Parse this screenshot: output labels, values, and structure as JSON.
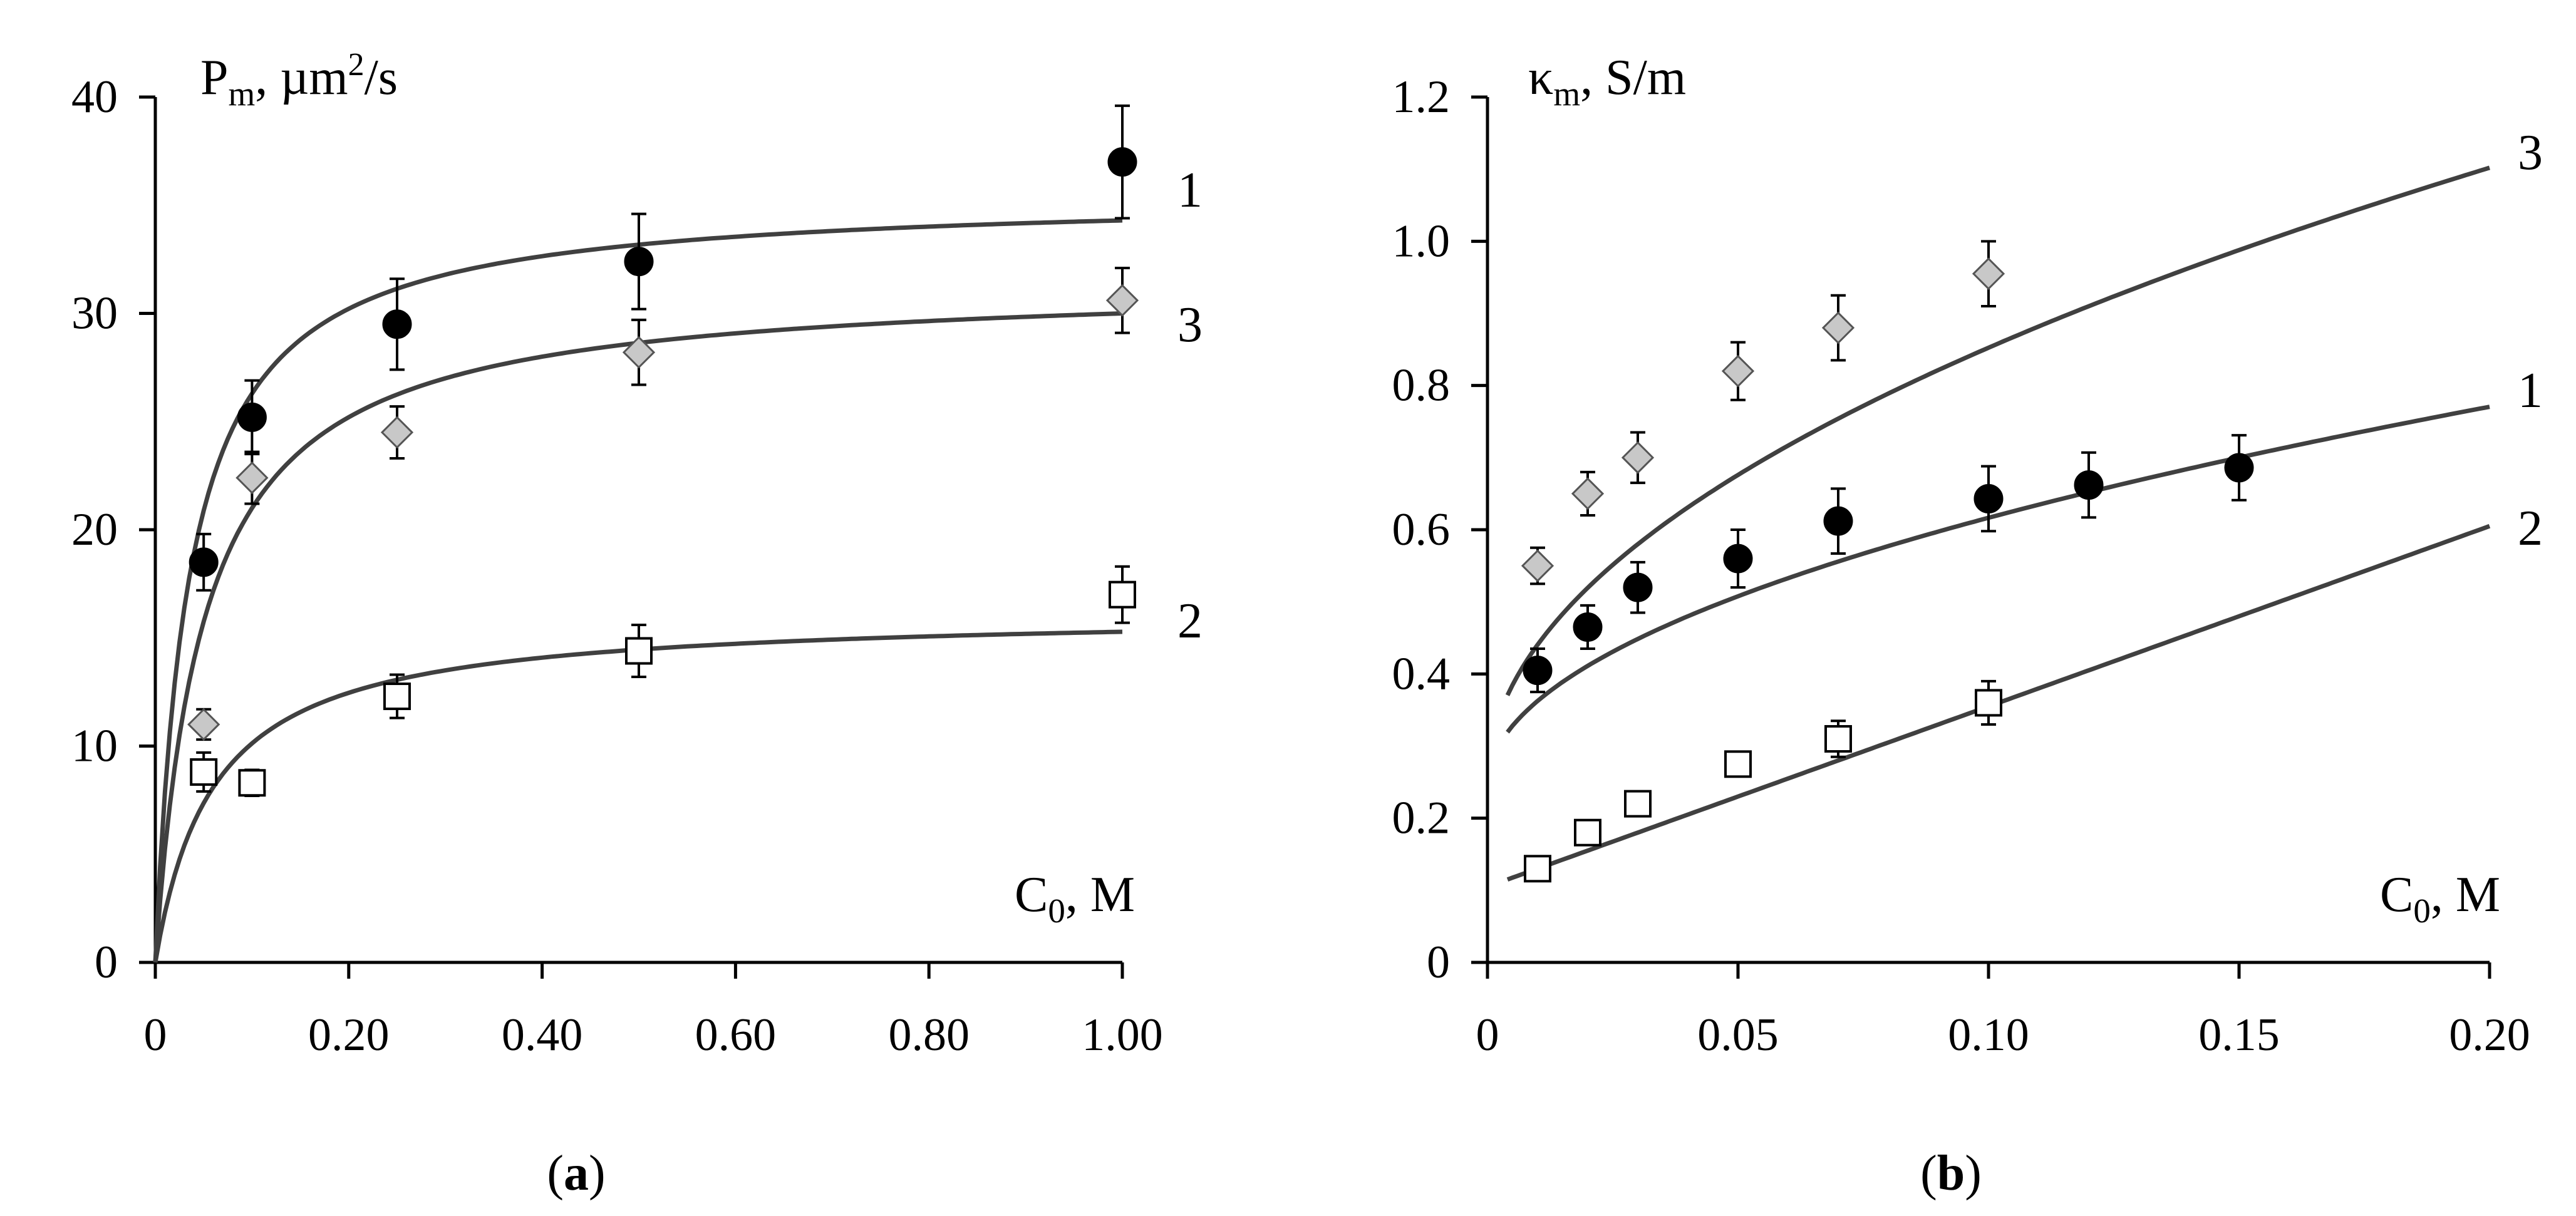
{
  "figure": {
    "panels": [
      {
        "id": "a",
        "panel_label_open": "(",
        "panel_label": "a",
        "panel_label_close": ")"
      },
      {
        "id": "b",
        "panel_label_open": "(",
        "panel_label": "b",
        "panel_label_close": ")"
      }
    ]
  },
  "chart_data": [
    {
      "type": "scatter",
      "panel": "a",
      "title": "",
      "ylabel_main": "P",
      "ylabel_sub": "m",
      "ylabel_rest": ", µm",
      "ylabel_sup": "2",
      "ylabel_tail": "/s",
      "xlabel_main": "C",
      "xlabel_sub": "0",
      "xlabel_tail": ", M",
      "xlim": [
        0,
        1.0
      ],
      "ylim": [
        0,
        40
      ],
      "xticks": [
        0,
        0.2,
        0.4,
        0.6,
        0.8,
        1.0
      ],
      "xtick_labels": [
        "0",
        "0.20",
        "0.40",
        "0.60",
        "0.80",
        "1.00"
      ],
      "yticks": [
        0,
        10,
        20,
        30,
        40
      ],
      "ytick_labels": [
        "0",
        "10",
        "20",
        "30",
        "40"
      ],
      "series": [
        {
          "name": "1",
          "marker": "circle",
          "marker_fill": "#000000",
          "x": [
            0.05,
            0.1,
            0.25,
            0.5,
            1.0
          ],
          "y": [
            18.5,
            25.2,
            29.5,
            32.4,
            37.0
          ],
          "err": [
            1.3,
            1.7,
            2.1,
            2.2,
            2.6
          ],
          "fit": {
            "x0": 0.05,
            "A": 35.5,
            "K": 0.035,
            "offset": 0
          }
        },
        {
          "name": "3",
          "marker": "diamond",
          "marker_fill": "#c8c8c8",
          "x": [
            0.05,
            0.1,
            0.25,
            0.5,
            1.0
          ],
          "y": [
            11.0,
            22.4,
            24.5,
            28.2,
            30.6
          ],
          "err": [
            0.7,
            1.2,
            1.2,
            1.5,
            1.5
          ],
          "fit": {
            "x0": 0.05,
            "A": 31.5,
            "K": 0.05,
            "offset": 0
          }
        },
        {
          "name": "2",
          "marker": "square",
          "marker_fill": "#ffffff",
          "x": [
            0.05,
            0.1,
            0.25,
            0.5,
            1.0
          ],
          "y": [
            8.8,
            8.3,
            12.3,
            14.4,
            17.0
          ],
          "err": [
            0.9,
            0.6,
            1.0,
            1.2,
            1.3
          ],
          "fit": {
            "x0": 0.05,
            "A": 16.2,
            "K": 0.06,
            "offset": 0
          }
        }
      ]
    },
    {
      "type": "scatter",
      "panel": "b",
      "title": "",
      "ylabel_main": "κ",
      "ylabel_sub": "m",
      "ylabel_rest": ", S/m",
      "ylabel_sup": "",
      "ylabel_tail": "",
      "xlabel_main": "C",
      "xlabel_sub": "0",
      "xlabel_tail": ", M",
      "xlim": [
        0,
        0.2
      ],
      "ylim": [
        0,
        1.2
      ],
      "xticks": [
        0,
        0.05,
        0.1,
        0.15,
        0.2
      ],
      "xtick_labels": [
        "0",
        "0.05",
        "0.10",
        "0.15",
        "0.20"
      ],
      "yticks": [
        0,
        0.2,
        0.4,
        0.6,
        0.8,
        1.0,
        1.2
      ],
      "ytick_labels": [
        "0",
        "0.2",
        "0.4",
        "0.6",
        "0.8",
        "1.0",
        "1.2"
      ],
      "series": [
        {
          "name": "3",
          "marker": "diamond",
          "marker_fill": "#c8c8c8",
          "x": [
            0.01,
            0.02,
            0.03,
            0.05,
            0.07,
            0.1
          ],
          "y": [
            0.55,
            0.65,
            0.7,
            0.82,
            0.88,
            0.955
          ],
          "err": [
            0.025,
            0.03,
            0.035,
            0.04,
            0.045,
            0.045
          ],
          "fit": {
            "x0": 0.004,
            "form": "sqrt",
            "a": 0.25,
            "b": 1.905
          }
        },
        {
          "name": "1",
          "marker": "circle",
          "marker_fill": "#000000",
          "x": [
            0.01,
            0.02,
            0.03,
            0.05,
            0.07,
            0.1,
            0.12,
            0.15
          ],
          "y": [
            0.405,
            0.465,
            0.52,
            0.56,
            0.612,
            0.643,
            0.662,
            0.686
          ],
          "err": [
            0.03,
            0.03,
            0.035,
            0.04,
            0.045,
            0.045,
            0.045,
            0.045
          ],
          "fit": {
            "x0": 0.004,
            "form": "sqrt",
            "a": 0.245,
            "b": 1.175
          }
        },
        {
          "name": "2",
          "marker": "square",
          "marker_fill": "#ffffff",
          "x": [
            0.01,
            0.02,
            0.03,
            0.05,
            0.07,
            0.1
          ],
          "y": [
            0.13,
            0.18,
            0.22,
            0.275,
            0.31,
            0.36
          ],
          "err": [
            0.01,
            0.01,
            0.01,
            0.015,
            0.025,
            0.03
          ],
          "fit": {
            "x0": 0.004,
            "form": "linear",
            "a": 0.105,
            "b": 2.5
          }
        }
      ]
    }
  ]
}
